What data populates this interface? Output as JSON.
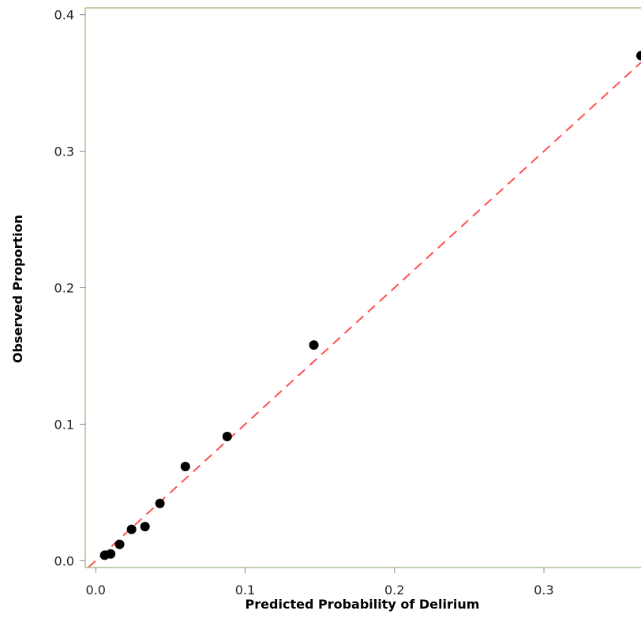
{
  "chart_data": {
    "type": "scatter",
    "title": "",
    "xlabel": "Predicted Probability of Delirium",
    "ylabel": "Observed Proportion",
    "xlim": [
      -0.007,
      0.365
    ],
    "ylim": [
      -0.005,
      0.405
    ],
    "x_ticks": [
      {
        "value": 0.0,
        "label": "0.0"
      },
      {
        "value": 0.1,
        "label": "0.1"
      },
      {
        "value": 0.2,
        "label": "0.2"
      },
      {
        "value": 0.3,
        "label": "0.3"
      }
    ],
    "y_ticks": [
      {
        "value": 0.0,
        "label": "0.0"
      },
      {
        "value": 0.1,
        "label": "0.1"
      },
      {
        "value": 0.2,
        "label": "0.2"
      },
      {
        "value": 0.3,
        "label": "0.3"
      },
      {
        "value": 0.4,
        "label": "0.4"
      }
    ],
    "grid": false,
    "reference_line": {
      "style": "dashed",
      "color": "#ff5050",
      "slope": 1,
      "intercept": 0
    },
    "frame_color": "#a8c08c",
    "marker_color": "#000000",
    "points": [
      {
        "x": 0.006,
        "y": 0.004
      },
      {
        "x": 0.01,
        "y": 0.005
      },
      {
        "x": 0.016,
        "y": 0.012
      },
      {
        "x": 0.024,
        "y": 0.023
      },
      {
        "x": 0.033,
        "y": 0.025
      },
      {
        "x": 0.043,
        "y": 0.042
      },
      {
        "x": 0.06,
        "y": 0.069
      },
      {
        "x": 0.088,
        "y": 0.091
      },
      {
        "x": 0.146,
        "y": 0.158
      },
      {
        "x": 0.365,
        "y": 0.37
      }
    ]
  }
}
